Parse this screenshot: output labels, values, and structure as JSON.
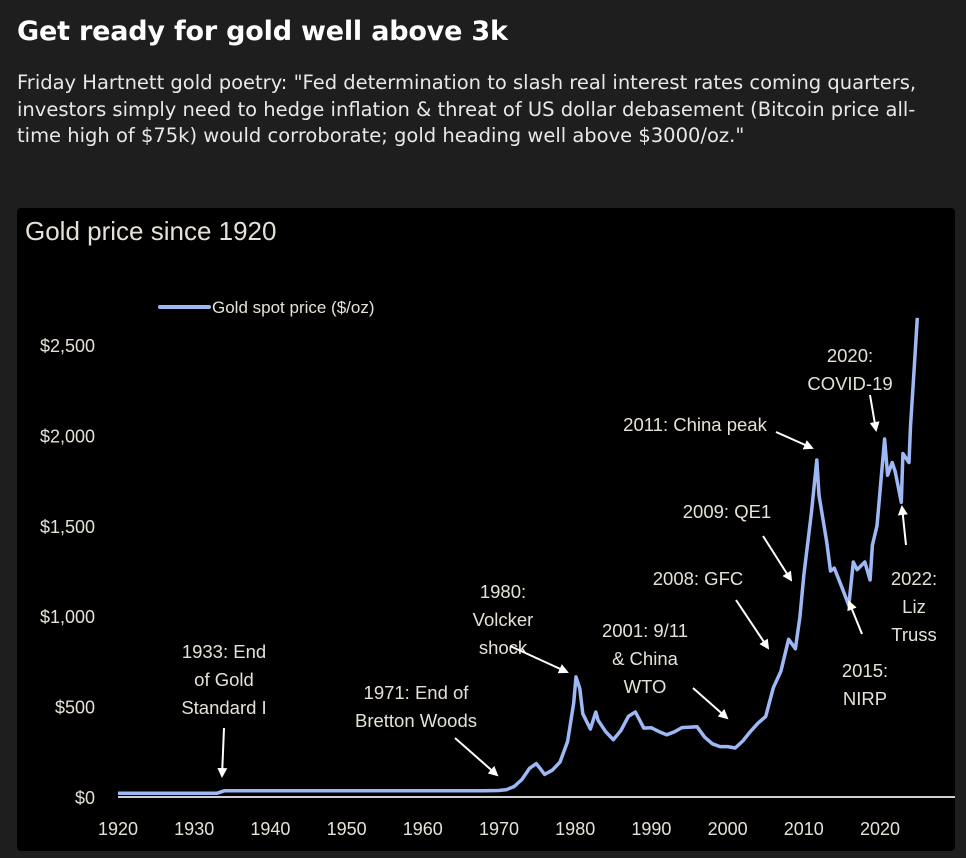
{
  "post": {
    "title": "Get ready for gold well above 3k",
    "body": "Friday Hartnett gold poetry: \"Fed determination to slash real interest rates coming quarters, investors simply need to hedge inflation & threat of US dollar debasement (Bitcoin price all-time high of $75k) would corroborate; gold heading well above $3000/oz.\""
  },
  "chart_data": {
    "type": "line",
    "title": "Gold price since 1920",
    "xlabel": "",
    "ylabel": "",
    "xlim": [
      1920,
      2029
    ],
    "ylim": [
      0,
      2600
    ],
    "grid": false,
    "legend_placement": "top-left",
    "line_color": "#9db8f5",
    "x_ticks": [
      "1920",
      "1930",
      "1940",
      "1950",
      "1960",
      "1970",
      "1980",
      "1990",
      "2000",
      "2010",
      "2020"
    ],
    "y_ticks": [
      {
        "value": 0,
        "label": "$0"
      },
      {
        "value": 500,
        "label": "$500"
      },
      {
        "value": 1000,
        "label": "$1,000"
      },
      {
        "value": 1500,
        "label": "$1,500"
      },
      {
        "value": 2000,
        "label": "$2,000"
      },
      {
        "value": 2500,
        "label": "$2,500"
      }
    ],
    "series": [
      {
        "name": "Gold spot price ($/oz)",
        "x": [
          1920,
          1933,
          1934,
          1968,
          1970,
          1971,
          1972,
          1973,
          1974,
          1974.9,
          1976,
          1977,
          1978,
          1979,
          1979.8,
          1980.1,
          1980.6,
          1981,
          1982,
          1982.7,
          1983,
          1984,
          1985,
          1986,
          1987,
          1987.9,
          1989,
          1990,
          1991,
          1992,
          1993,
          1994,
          1996,
          1997,
          1998,
          1999,
          2000,
          2001,
          2002,
          2003,
          2004,
          2005,
          2006,
          2007,
          2008,
          2008.9,
          2009.5,
          2010,
          2011,
          2011.7,
          2012,
          2013,
          2013.5,
          2014,
          2015,
          2015.9,
          2016.5,
          2017,
          2018,
          2018.7,
          2019,
          2019.6,
          2020.6,
          2021,
          2021.6,
          2022,
          2022.8,
          2023,
          2023.8,
          2024,
          2024.5,
          2024.9
        ],
        "y": [
          21,
          21,
          35,
          35,
          36,
          41,
          58,
          97,
          159,
          185,
          125,
          148,
          193,
          307,
          520,
          664,
          600,
          460,
          376,
          470,
          424,
          361,
          317,
          368,
          447,
          470,
          381,
          383,
          362,
          344,
          360,
          384,
          388,
          331,
          294,
          279,
          279,
          271,
          310,
          363,
          409,
          445,
          604,
          696,
          872,
          820,
          1000,
          1225,
          1572,
          1864,
          1669,
          1411,
          1250,
          1266,
          1160,
          1060,
          1300,
          1257,
          1300,
          1200,
          1393,
          1500,
          1980,
          1780,
          1850,
          1800,
          1630,
          1900,
          1850,
          2050,
          2380,
          2650
        ]
      }
    ],
    "annotations": [
      {
        "lines": [
          "1933: End",
          "of Gold",
          "Standard I"
        ]
      },
      {
        "lines": [
          "1971: End of",
          "Bretton Woods"
        ]
      },
      {
        "lines": [
          "1980:",
          "Volcker",
          "shock"
        ]
      },
      {
        "lines": [
          "2001: 9/11",
          "& China",
          "WTO"
        ]
      },
      {
        "lines": [
          "2008: GFC"
        ]
      },
      {
        "lines": [
          "2009: QE1"
        ]
      },
      {
        "lines": [
          "2011: China peak"
        ]
      },
      {
        "lines": [
          "2020:",
          "COVID-19"
        ]
      },
      {
        "lines": [
          "2015:",
          "NIRP"
        ]
      },
      {
        "lines": [
          "2022:",
          "Liz",
          "Truss"
        ]
      }
    ]
  }
}
